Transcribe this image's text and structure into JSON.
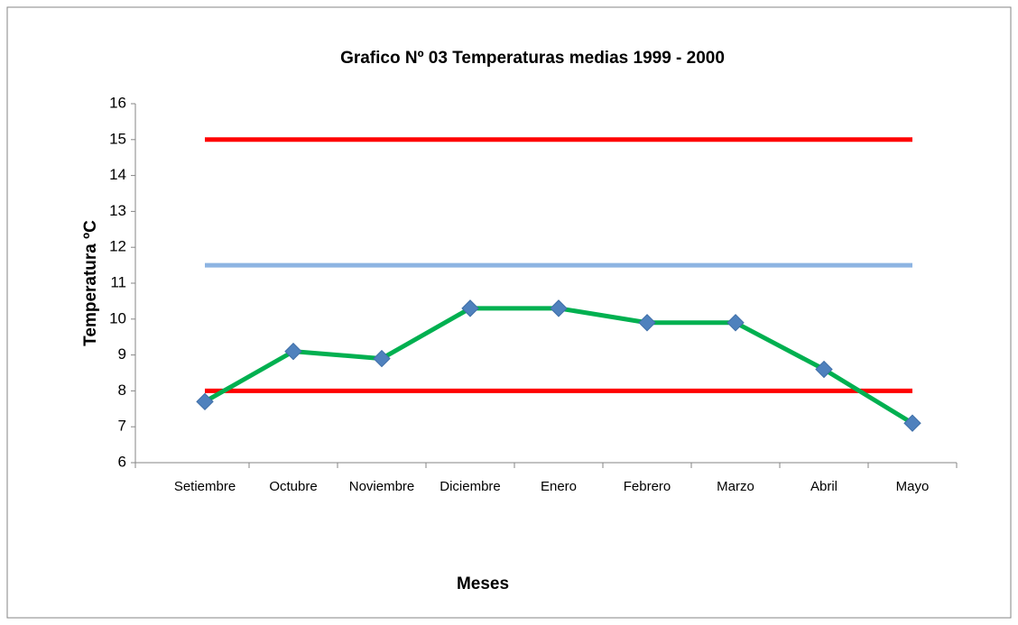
{
  "chart_data": {
    "type": "line",
    "title": "Grafico Nº 03 Temperaturas medias  1999 - 2000",
    "x_label": "Meses",
    "y_label": "Temperatura ºC",
    "categories": [
      "Setiembre",
      "Octubre",
      "Noviembre",
      "Diciembre",
      "Enero",
      "Febrero",
      "Marzo",
      "Abril",
      "Mayo"
    ],
    "series": [
      {
        "color": "#00b050",
        "marker": "diamond",
        "marker_color": "#4f81bd",
        "values": [
          7.7,
          9.1,
          8.9,
          10.3,
          10.3,
          9.9,
          9.9,
          8.6,
          7.1
        ]
      },
      {
        "color": "#ff0000",
        "values": [
          15,
          15,
          15,
          15,
          15,
          15,
          15,
          15,
          15
        ]
      },
      {
        "color": "#8db4e2",
        "values": [
          11.5,
          11.5,
          11.5,
          11.5,
          11.5,
          11.5,
          11.5,
          11.5,
          11.5
        ]
      },
      {
        "color": "#ff0000",
        "values": [
          8,
          8,
          8,
          8,
          8,
          8,
          8,
          8,
          8
        ]
      }
    ],
    "ylim": [
      6,
      16
    ],
    "yticks": [
      6,
      7,
      8,
      9,
      10,
      11,
      12,
      13,
      14,
      15,
      16
    ],
    "grid": false
  }
}
